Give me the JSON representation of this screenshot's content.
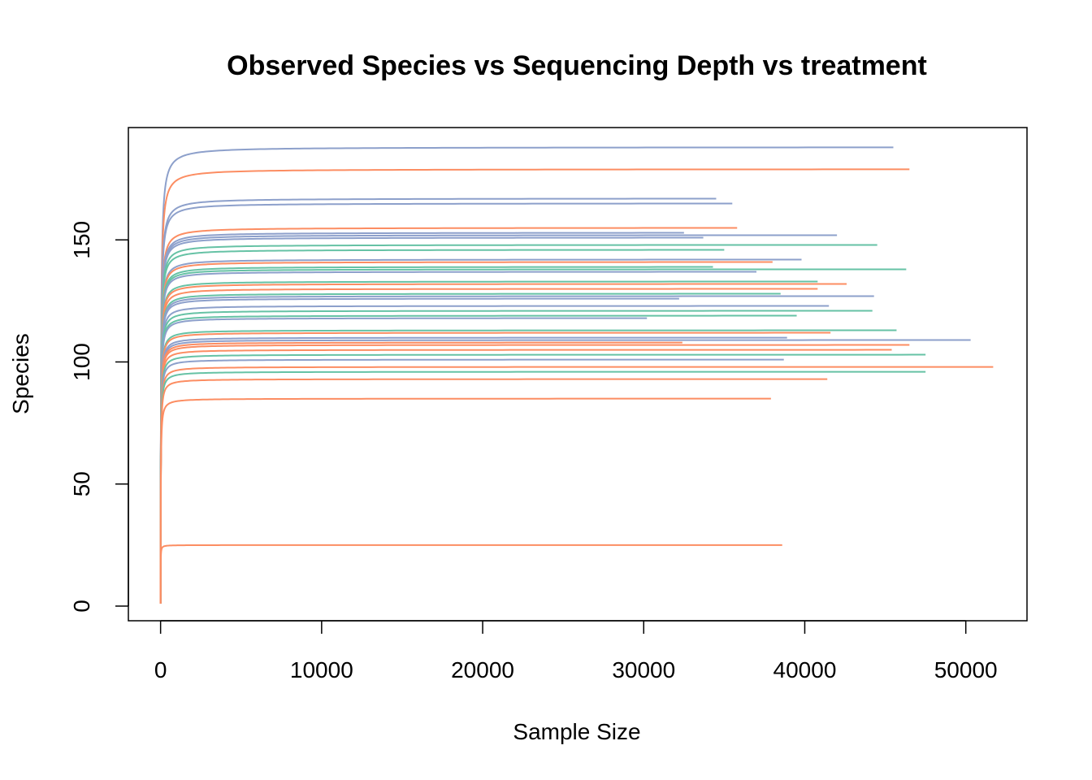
{
  "chart_data": {
    "type": "line",
    "title": "Observed Species vs Sequencing Depth vs treatment",
    "xlabel": "Sample Size",
    "ylabel": "Species",
    "xlim": [
      -2000,
      53800
    ],
    "ylim": [
      -6,
      196
    ],
    "xticks": [
      0,
      10000,
      20000,
      30000,
      40000,
      50000
    ],
    "yticks": [
      0,
      50,
      100,
      150
    ],
    "grid": false,
    "colors": {
      "orange": "#FC8D62",
      "blue": "#8DA0CB",
      "green": "#66C2A5"
    },
    "series": [
      {
        "group": "blue",
        "plateau": 188,
        "max_depth": 45500
      },
      {
        "group": "orange",
        "plateau": 179,
        "max_depth": 46500
      },
      {
        "group": "blue",
        "plateau": 167,
        "max_depth": 34500
      },
      {
        "group": "blue",
        "plateau": 165,
        "max_depth": 35500
      },
      {
        "group": "orange",
        "plateau": 155,
        "max_depth": 35800
      },
      {
        "group": "blue",
        "plateau": 153,
        "max_depth": 32500
      },
      {
        "group": "blue",
        "plateau": 152,
        "max_depth": 42000
      },
      {
        "group": "blue",
        "plateau": 151,
        "max_depth": 33700
      },
      {
        "group": "green",
        "plateau": 148,
        "max_depth": 44500
      },
      {
        "group": "green",
        "plateau": 146,
        "max_depth": 35000
      },
      {
        "group": "blue",
        "plateau": 142,
        "max_depth": 39800
      },
      {
        "group": "orange",
        "plateau": 141,
        "max_depth": 38000
      },
      {
        "group": "green",
        "plateau": 139,
        "max_depth": 34300
      },
      {
        "group": "green",
        "plateau": 138,
        "max_depth": 46300
      },
      {
        "group": "blue",
        "plateau": 137,
        "max_depth": 37000
      },
      {
        "group": "green",
        "plateau": 133,
        "max_depth": 40800
      },
      {
        "group": "orange",
        "plateau": 132,
        "max_depth": 42600
      },
      {
        "group": "orange",
        "plateau": 130,
        "max_depth": 40800
      },
      {
        "group": "green",
        "plateau": 128,
        "max_depth": 38500
      },
      {
        "group": "blue",
        "plateau": 127,
        "max_depth": 44300
      },
      {
        "group": "blue",
        "plateau": 126,
        "max_depth": 32200
      },
      {
        "group": "blue",
        "plateau": 123,
        "max_depth": 41500
      },
      {
        "group": "green",
        "plateau": 121,
        "max_depth": 44200
      },
      {
        "group": "green",
        "plateau": 119,
        "max_depth": 39500
      },
      {
        "group": "blue",
        "plateau": 118,
        "max_depth": 30200
      },
      {
        "group": "green",
        "plateau": 113,
        "max_depth": 45700
      },
      {
        "group": "orange",
        "plateau": 112,
        "max_depth": 41600
      },
      {
        "group": "blue",
        "plateau": 110,
        "max_depth": 38900
      },
      {
        "group": "blue",
        "plateau": 109,
        "max_depth": 50300
      },
      {
        "group": "orange",
        "plateau": 108,
        "max_depth": 32400
      },
      {
        "group": "orange",
        "plateau": 107,
        "max_depth": 46500
      },
      {
        "group": "orange",
        "plateau": 105,
        "max_depth": 45400
      },
      {
        "group": "green",
        "plateau": 103,
        "max_depth": 47500
      },
      {
        "group": "blue",
        "plateau": 101,
        "max_depth": 38700
      },
      {
        "group": "orange",
        "plateau": 98,
        "max_depth": 51700
      },
      {
        "group": "green",
        "plateau": 96,
        "max_depth": 47500
      },
      {
        "group": "orange",
        "plateau": 93,
        "max_depth": 41400
      },
      {
        "group": "orange",
        "plateau": 85,
        "max_depth": 37900
      },
      {
        "group": "orange",
        "plateau": 25,
        "max_depth": 38600
      }
    ]
  }
}
